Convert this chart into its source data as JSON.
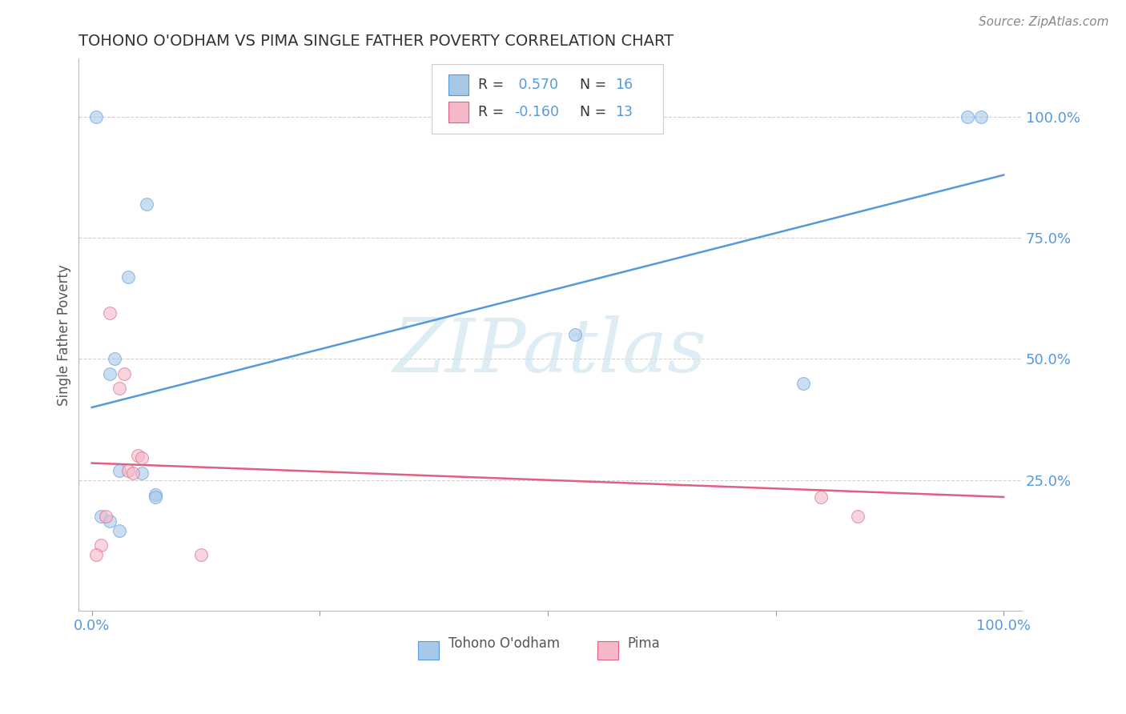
{
  "title": "TOHONO O'ODHAM VS PIMA SINGLE FATHER POVERTY CORRELATION CHART",
  "source": "Source: ZipAtlas.com",
  "ylabel": "Single Father Poverty",
  "watermark": "ZIPatlas",
  "blue_scatter_x": [
    0.005,
    0.06,
    0.04,
    0.025,
    0.02,
    0.03,
    0.055,
    0.07,
    0.07,
    0.01,
    0.02,
    0.03,
    0.53,
    0.78,
    0.96,
    0.975
  ],
  "blue_scatter_y": [
    1.0,
    0.82,
    0.67,
    0.5,
    0.47,
    0.27,
    0.265,
    0.22,
    0.215,
    0.175,
    0.165,
    0.145,
    0.55,
    0.45,
    1.0,
    1.0
  ],
  "pink_scatter_x": [
    0.02,
    0.035,
    0.03,
    0.04,
    0.045,
    0.05,
    0.055,
    0.015,
    0.01,
    0.005,
    0.8,
    0.84,
    0.12
  ],
  "pink_scatter_y": [
    0.595,
    0.47,
    0.44,
    0.27,
    0.265,
    0.3,
    0.295,
    0.175,
    0.115,
    0.095,
    0.215,
    0.175,
    0.095
  ],
  "blue_line_x": [
    0.0,
    1.0
  ],
  "blue_line_y": [
    0.4,
    0.88
  ],
  "pink_line_x": [
    0.0,
    1.0
  ],
  "pink_line_y": [
    0.285,
    0.215
  ],
  "ylim": [
    -0.02,
    1.12
  ],
  "xlim": [
    -0.015,
    1.02
  ],
  "ytick_positions": [
    0.25,
    0.5,
    0.75,
    1.0
  ],
  "ytick_labels": [
    "25.0%",
    "50.0%",
    "75.0%",
    "100.0%"
  ],
  "xtick_positions": [
    0.0,
    0.25,
    0.5,
    0.75,
    1.0
  ],
  "xtick_labels": [
    "0.0%",
    "",
    "",
    "",
    "100.0%"
  ],
  "blue_color": "#a8c8e8",
  "pink_color": "#f4b8c8",
  "blue_line_color": "#5599dd",
  "pink_line_color": "#e06080",
  "background_color": "#ffffff",
  "grid_color": "#cccccc",
  "title_color": "#333333",
  "axis_label_color": "#5599dd",
  "scatter_size": 130,
  "scatter_alpha": 0.6,
  "watermark_color": "#d0e4f0",
  "watermark_alpha": 0.7
}
